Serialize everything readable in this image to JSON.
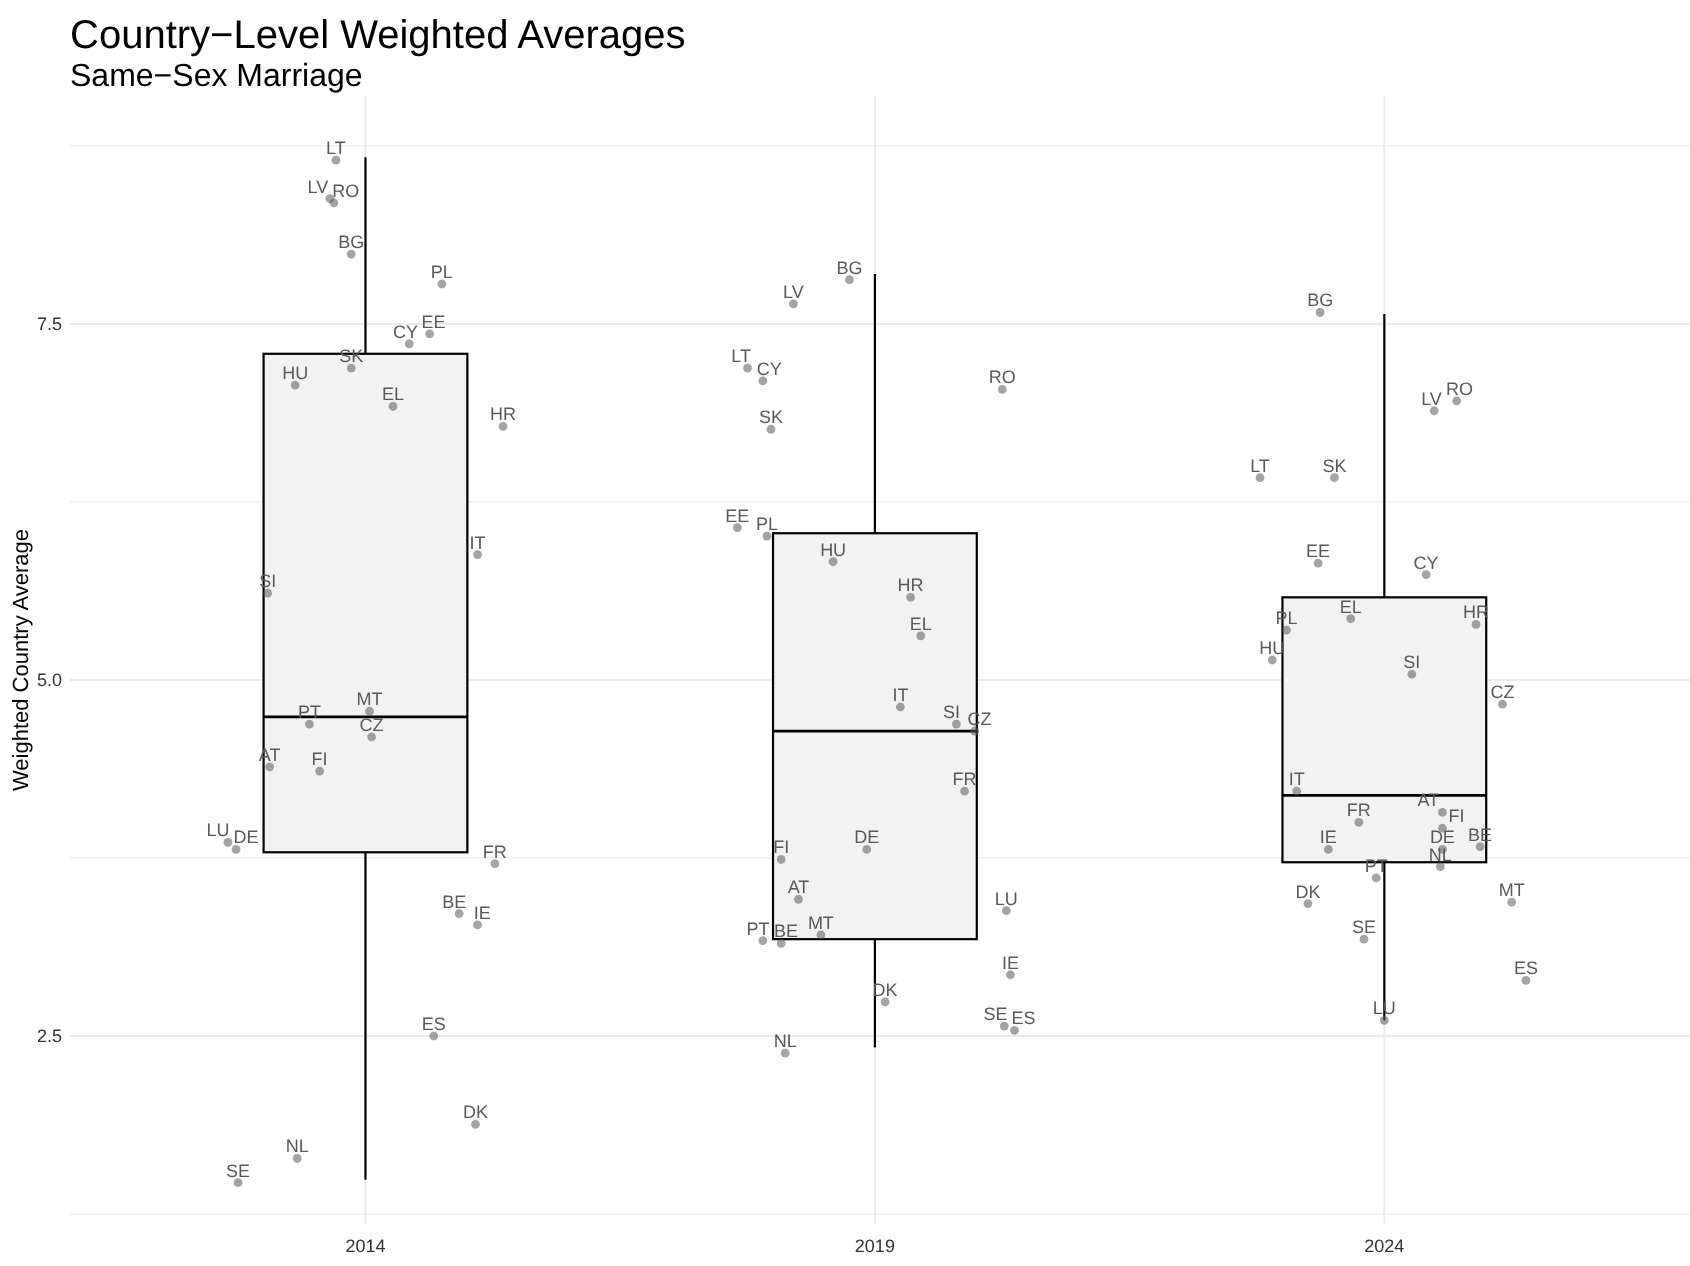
{
  "chart_data": {
    "type": "box",
    "title": "Country−Level Weighted Averages",
    "subtitle": "Same−Sex Marriage",
    "ylabel": "Weighted Country Average",
    "xlim": [
      2011.1,
      2027.0
    ],
    "xticks": [
      2014,
      2019,
      2024
    ],
    "ylim": [
      1.18,
      9.1
    ],
    "yticks": [
      {
        "value": 1.25,
        "label": null
      },
      2.5,
      {
        "value": 3.75,
        "label": null
      },
      {
        "value": 5,
        "label": "5.0"
      },
      {
        "value": 6.25,
        "label": null
      },
      7.5,
      {
        "value": 8.75,
        "label": null
      }
    ],
    "grid": true,
    "marker": "circle",
    "series": [
      {
        "type": "box",
        "color": "#f2f2f2",
        "x": [
          2014,
          2019,
          2024
        ],
        "boxes": [
          {
            "low": 1.49,
            "q1": 3.79,
            "median": 4.74,
            "q3": 7.29,
            "high": 8.67
          },
          {
            "low": 2.42,
            "q1": 3.18,
            "median": 4.64,
            "q3": 6.03,
            "high": 7.85
          },
          {
            "low": 2.61,
            "q1": 3.72,
            "median": 4.19,
            "q3": 5.58,
            "high": 7.57
          }
        ]
      },
      {
        "type": "scatter",
        "color": "#595959",
        "x": [
          2013.71,
          2013.65,
          2013.69,
          2013.86,
          2014.75,
          2014.63,
          2014.43,
          2013.86,
          2013.31,
          2014.27,
          2015.35,
          2015.1,
          2013.04,
          2014.04,
          2013.45,
          2014.06,
          2013.06,
          2013.55,
          2012.65,
          2012.73,
          2015.27,
          2014.92,
          2015.1,
          2014.67,
          2015.08,
          2013.33,
          2012.75
        ],
        "values": [
          8.65,
          8.38,
          8.35,
          7.99,
          7.78,
          7.43,
          7.36,
          7.19,
          7.07,
          6.92,
          6.78,
          5.88,
          5.61,
          4.78,
          4.69,
          4.6,
          4.39,
          4.36,
          3.86,
          3.81,
          3.71,
          3.36,
          3.28,
          2.5,
          1.88,
          1.64,
          1.47
        ],
        "value_labels": [
          "LT",
          "LV",
          "RO",
          "BG",
          "PL",
          "EE",
          "CY",
          "SK",
          "HU",
          "EL",
          "HR",
          "IT",
          "SI",
          "MT",
          "PT",
          "CZ",
          "AT",
          "FI",
          "LU",
          "DE",
          "FR",
          "BE",
          "IE",
          "ES",
          "DK",
          "NL",
          "SE"
        ]
      },
      {
        "type": "scatter",
        "color": "#595959",
        "x": [
          2018.75,
          2018.2,
          2017.75,
          2017.9,
          2020.25,
          2017.98,
          2017.65,
          2017.94,
          2018.59,
          2019.35,
          2019.45,
          2019.25,
          2019.8,
          2019.98,
          2019.88,
          2018.92,
          2018.08,
          2018.25,
          2020.29,
          2018.47,
          2017.9,
          2018.08,
          2020.33,
          2019.1,
          2020.27,
          2020.37,
          2018.12
        ],
        "values": [
          7.81,
          7.64,
          7.19,
          7.1,
          7.04,
          6.76,
          6.07,
          6.01,
          5.83,
          5.58,
          5.31,
          4.81,
          4.69,
          4.64,
          4.22,
          3.81,
          3.74,
          3.46,
          3.38,
          3.21,
          3.17,
          3.15,
          2.93,
          2.74,
          2.57,
          2.54,
          2.38
        ],
        "value_labels": [
          "BG",
          "LV",
          "LT",
          "CY",
          "RO",
          "SK",
          "EE",
          "PL",
          "HU",
          "HR",
          "EL",
          "IT",
          "SI",
          "CZ",
          "FR",
          "DE",
          "FI",
          "AT",
          "LU",
          "MT",
          "PT",
          "BE",
          "IE",
          "DK",
          "SE",
          "ES",
          "NL"
        ]
      },
      {
        "type": "scatter",
        "color": "#595959",
        "x": [
          2023.37,
          2024.71,
          2024.49,
          2022.78,
          2023.51,
          2023.35,
          2024.41,
          2023.67,
          2024.9,
          2023.04,
          2022.9,
          2024.27,
          2025.16,
          2023.14,
          2024.57,
          2023.75,
          2024.57,
          2023.45,
          2024.57,
          2024.94,
          2024.55,
          2023.92,
          2023.25,
          2025.25,
          2023.8,
          2025.39,
          2024.0
        ],
        "values": [
          7.58,
          6.96,
          6.89,
          6.42,
          6.42,
          5.82,
          5.74,
          5.43,
          5.39,
          5.35,
          5.14,
          5.04,
          4.83,
          4.22,
          4.07,
          4.0,
          3.96,
          3.81,
          3.81,
          3.83,
          3.69,
          3.61,
          3.43,
          3.44,
          3.18,
          2.89,
          2.61
        ],
        "value_labels": [
          "BG",
          "RO",
          "LV",
          "LT",
          "SK",
          "EE",
          "CY",
          "EL",
          "HR",
          "PL",
          "HU",
          "SI",
          "CZ",
          "IT",
          "AT",
          "FR",
          "FI",
          "IE",
          "DE",
          "BE",
          "NL",
          "PT",
          "DK",
          "MT",
          "SE",
          "ES",
          "LU"
        ]
      }
    ]
  }
}
